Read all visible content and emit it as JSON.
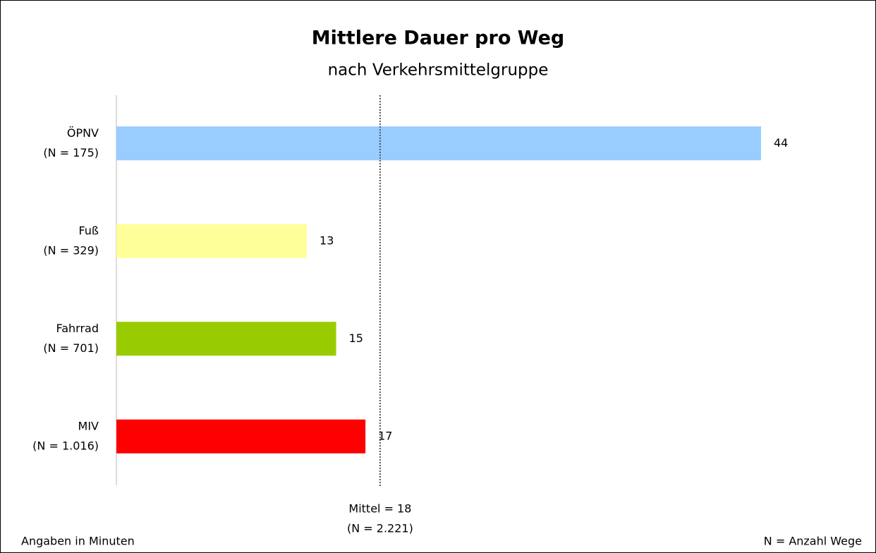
{
  "chart_data": {
    "type": "bar",
    "orientation": "horizontal",
    "title": "Mittlere Dauer pro Weg",
    "subtitle": "nach Verkehrsmittelgruppe",
    "categories": [
      "ÖPNV",
      "Fuß",
      "Fahrrad",
      "MIV"
    ],
    "category_counts": [
      "(N = 175)",
      "(N = 329)",
      "(N = 701)",
      "(N = 1.016)"
    ],
    "values": [
      44,
      13,
      15,
      17
    ],
    "colors": [
      "#99ccff",
      "#ffff99",
      "#99cc00",
      "#ff0000"
    ],
    "xlim": [
      0,
      44
    ],
    "mean": {
      "value": 18,
      "label": "Mittel = 18",
      "count_label": "(N = 2.221)"
    },
    "footnote_left": "Angaben in Minuten",
    "footnote_right": "N = Anzahl Wege"
  }
}
